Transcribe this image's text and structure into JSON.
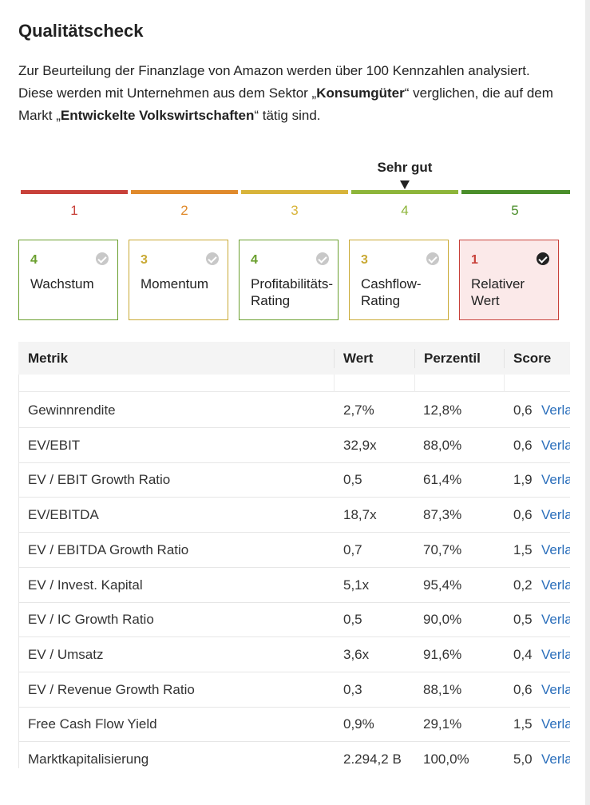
{
  "title": "Qualitätscheck",
  "intro": {
    "part1": "Zur Beurteilung der Finanzlage von Amazon werden über 100 Kennzahlen analysiert. Diese werden mit Unternehmen aus dem Sektor „",
    "sector": "Konsumgüter",
    "part2": "“ verglichen, die auf dem Markt „",
    "market": "Entwickelte Volkswirtschaften",
    "part3": "“ tätig sind."
  },
  "scale": {
    "current_label": "Sehr gut",
    "current_value": 4,
    "segments": [
      {
        "number": "1",
        "color": "#c8413a"
      },
      {
        "number": "2",
        "color": "#e08a2c"
      },
      {
        "number": "3",
        "color": "#d8b43a"
      },
      {
        "number": "4",
        "color": "#8db53a"
      },
      {
        "number": "5",
        "color": "#4a8e2a"
      }
    ]
  },
  "categories": [
    {
      "score": "4",
      "label_line1": "Wachstum",
      "label_line2": "",
      "color": "#6a9f2e",
      "active": false
    },
    {
      "score": "3",
      "label_line1": "Momentum",
      "label_line2": "",
      "color": "#c9a934",
      "active": false
    },
    {
      "score": "4",
      "label_line1": "Profitabilitäts-",
      "label_line2": "Rating",
      "color": "#6a9f2e",
      "active": false
    },
    {
      "score": "3",
      "label_line1": "Cashflow-",
      "label_line2": "Rating",
      "color": "#c9a934",
      "active": false
    },
    {
      "score": "1",
      "label_line1": "Relativer",
      "label_line2": "Wert",
      "color": "#c8413a",
      "active": true
    }
  ],
  "table": {
    "headers": [
      "Metrik",
      "Wert",
      "Perzentil",
      "Score"
    ],
    "link_label": "Verlauf",
    "rows": [
      {
        "metric": "Gewinnrendite",
        "value": "2,7%",
        "percentile": "12,8%",
        "score": "0,6"
      },
      {
        "metric": "EV/EBIT",
        "value": "32,9x",
        "percentile": "88,0%",
        "score": "0,6"
      },
      {
        "metric": "EV / EBIT Growth Ratio",
        "value": "0,5",
        "percentile": "61,4%",
        "score": "1,9"
      },
      {
        "metric": "EV/EBITDA",
        "value": "18,7x",
        "percentile": "87,3%",
        "score": "0,6"
      },
      {
        "metric": "EV / EBITDA Growth Ratio",
        "value": "0,7",
        "percentile": "70,7%",
        "score": "1,5"
      },
      {
        "metric": "EV / Invest. Kapital",
        "value": "5,1x",
        "percentile": "95,4%",
        "score": "0,2"
      },
      {
        "metric": "EV / IC Growth Ratio",
        "value": "0,5",
        "percentile": "90,0%",
        "score": "0,5"
      },
      {
        "metric": "EV / Umsatz",
        "value": "3,6x",
        "percentile": "91,6%",
        "score": "0,4"
      },
      {
        "metric": "EV / Revenue Growth Ratio",
        "value": "0,3",
        "percentile": "88,1%",
        "score": "0,6"
      },
      {
        "metric": "Free Cash Flow Yield",
        "value": "0,9%",
        "percentile": "29,1%",
        "score": "1,5"
      },
      {
        "metric": "Marktkapitalisierung",
        "value": "2.294,2 B",
        "percentile": "100,0%",
        "score": "5,0"
      }
    ]
  }
}
